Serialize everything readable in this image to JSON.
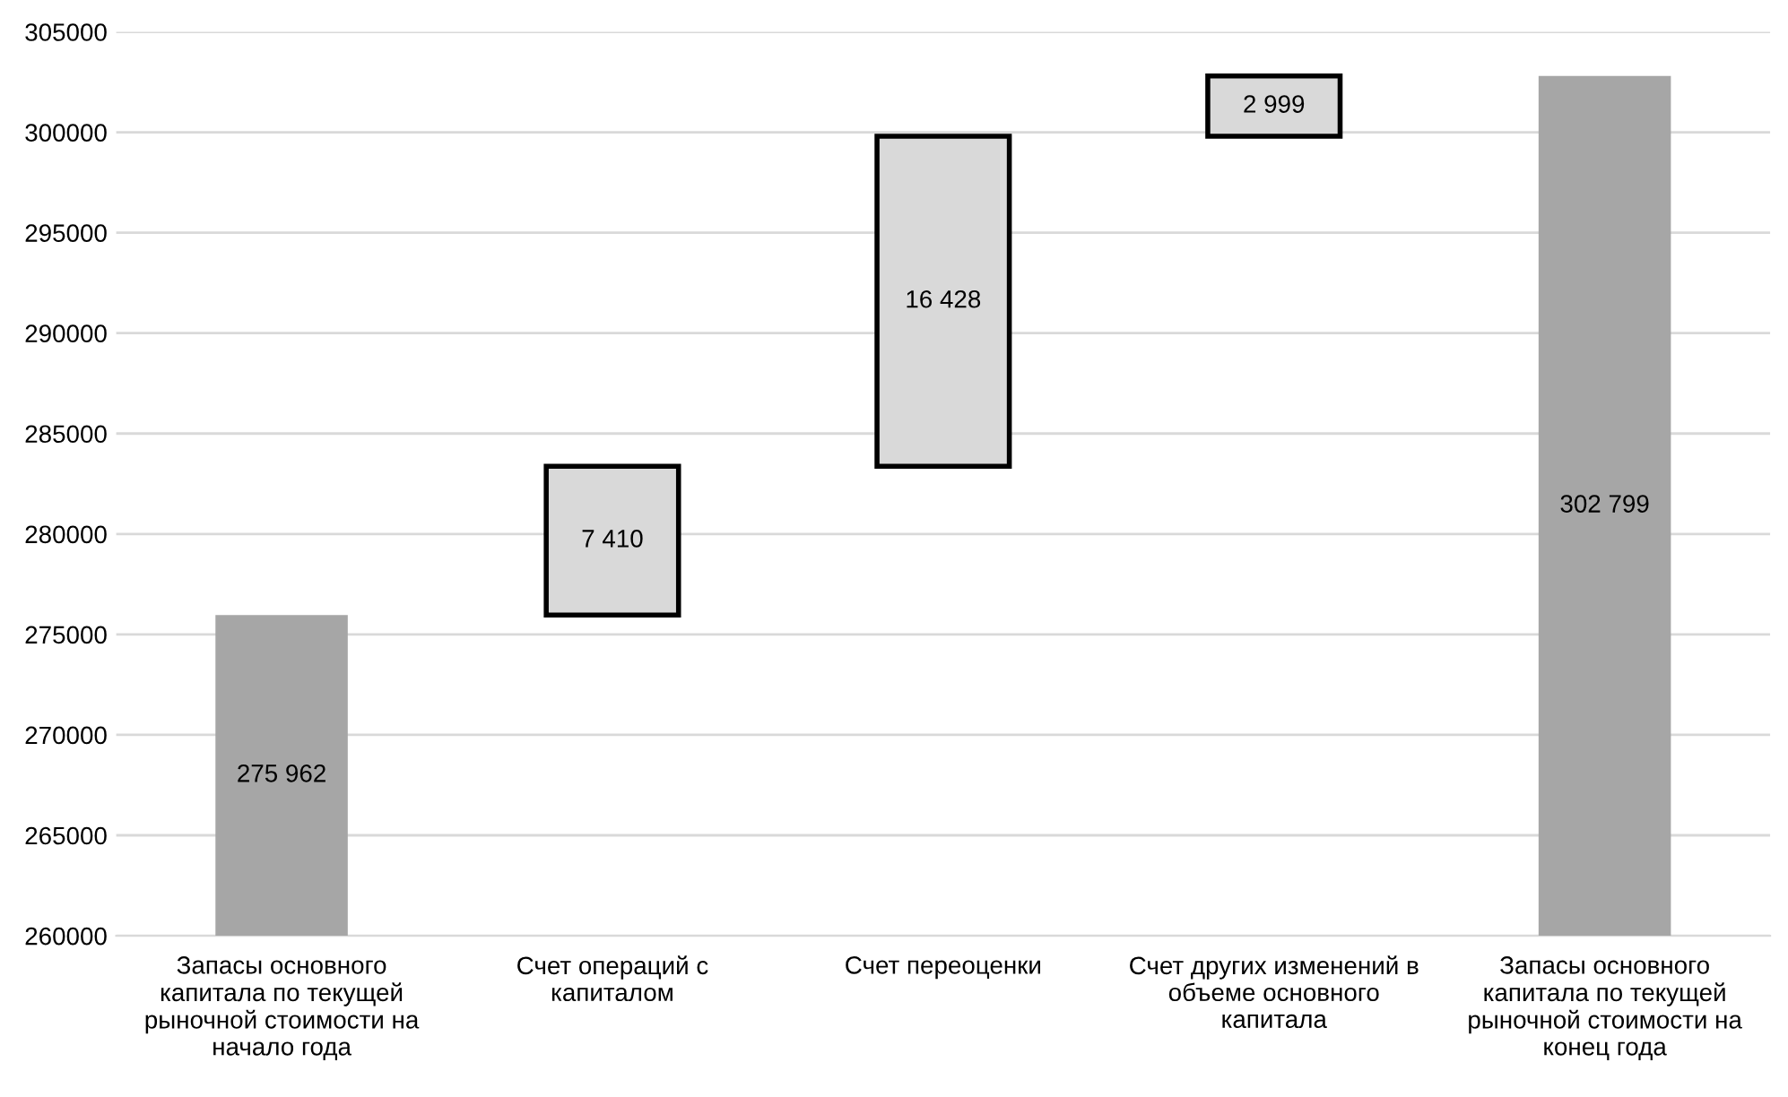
{
  "chart_data": {
    "type": "bar",
    "categories": [
      "Запасы основного\nкапитала по текущей\nрыночной стоимости на\nначало года",
      "Счет операций с\nкапиталом",
      "Счет переоценки",
      "Счет других изменений в\nобъеме основного\nкапитала",
      "Запасы основного\nкапитала по текущей\nрыночной стоимости на\nконец года"
    ],
    "values": [
      275962,
      7410,
      16428,
      2999,
      302799
    ],
    "base": [
      0,
      275962,
      283372,
      299800,
      0
    ],
    "colors": [
      "#a6a6a6",
      "#d9d9d9",
      "#d9d9d9",
      "#d9d9d9",
      "#a6a6a6"
    ],
    "value_labels": [
      "275 962",
      "7 410",
      "16 428",
      "2 999",
      "302 799"
    ],
    "ylim": [
      260000,
      305000
    ],
    "yticks": [
      260000,
      265000,
      270000,
      275000,
      280000,
      285000,
      290000,
      295000,
      300000,
      305000
    ],
    "grid": "y"
  }
}
